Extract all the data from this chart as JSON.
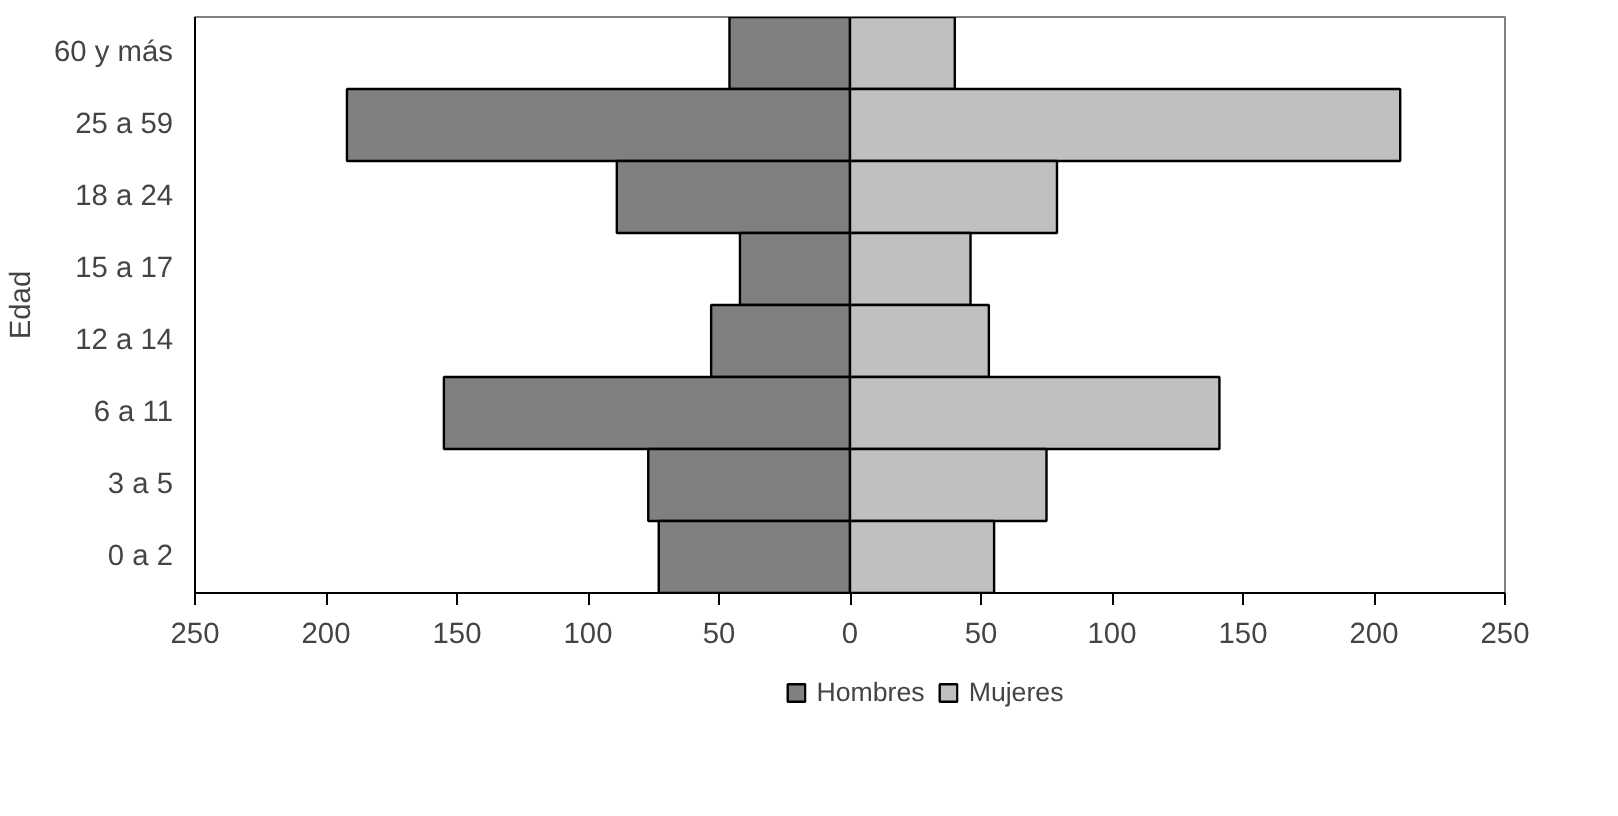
{
  "chart_data": {
    "type": "bar",
    "orientation": "horizontal",
    "stacked": true,
    "ylabel": "Edad",
    "categories": [
      "60 y más",
      "25 a 59",
      "18 a 24",
      "15 a 17",
      "12 a 14",
      "6 a 11",
      "3 a 5",
      "0 a 2"
    ],
    "series": [
      {
        "name": "Hombres",
        "color": "#808080",
        "values": [
          -46,
          -192,
          -89,
          -42,
          -53,
          -155,
          -77,
          -73
        ]
      },
      {
        "name": "Mujeres",
        "color": "#c0c0c0",
        "values": [
          40,
          210,
          79,
          46,
          53,
          141,
          75,
          55
        ]
      }
    ],
    "xlim": [
      -250,
      250
    ],
    "xticks": [
      {
        "value": -250,
        "label": "250"
      },
      {
        "value": -200,
        "label": "200"
      },
      {
        "value": -150,
        "label": "150"
      },
      {
        "value": -100,
        "label": "100"
      },
      {
        "value": -50,
        "label": "50"
      },
      0,
      50,
      100,
      150,
      200,
      250
    ],
    "grid": false,
    "legend": "bottom"
  }
}
